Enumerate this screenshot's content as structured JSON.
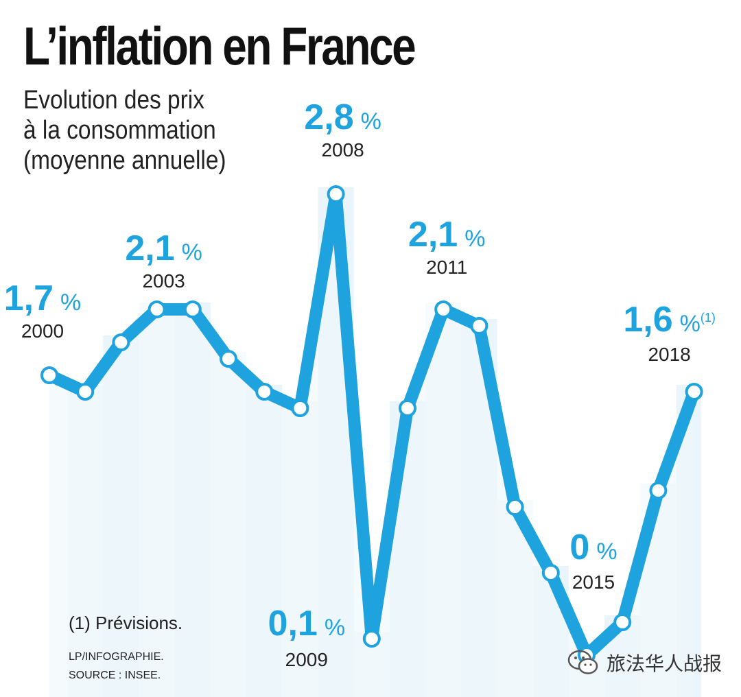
{
  "chart_data": {
    "type": "line",
    "title": "L’inflation en France",
    "subtitle_lines": [
      "Evolution des prix",
      "à la consommation",
      "(moyenne annuelle)"
    ],
    "xlabel": "",
    "ylabel": "",
    "ylim": [
      0,
      3
    ],
    "grid": false,
    "series": [
      {
        "name": "Inflation",
        "x": [
          2000,
          2001,
          2002,
          2003,
          2004,
          2005,
          2006,
          2007,
          2008,
          2009,
          2010,
          2011,
          2012,
          2013,
          2014,
          2015,
          2016,
          2017,
          2018
        ],
        "values": [
          1.7,
          1.6,
          1.9,
          2.1,
          2.1,
          1.8,
          1.6,
          1.5,
          2.8,
          0.1,
          1.5,
          2.1,
          2.0,
          0.9,
          0.5,
          0.0,
          0.2,
          1.0,
          1.6
        ],
        "color": "#1fa3df"
      }
    ],
    "annotations": [
      {
        "year": 2000,
        "value_text": "1,7",
        "unit": "%",
        "note": ""
      },
      {
        "year": 2003,
        "value_text": "2,1",
        "unit": "%",
        "note": ""
      },
      {
        "year": 2008,
        "value_text": "2,8",
        "unit": "%",
        "note": ""
      },
      {
        "year": 2009,
        "value_text": "0,1",
        "unit": "%",
        "note": ""
      },
      {
        "year": 2011,
        "value_text": "2,1",
        "unit": "%",
        "note": ""
      },
      {
        "year": 2015,
        "value_text": "0",
        "unit": "%",
        "note": ""
      },
      {
        "year": 2018,
        "value_text": "1,6",
        "unit": "%",
        "note": "(1)"
      }
    ],
    "footnote": "(1) Prévisions.",
    "credits": [
      "LP/INFOGRAPHIE.",
      "SOURCE : INSEE."
    ]
  },
  "watermark": {
    "text": "旅法华人战报",
    "icon": "wechat-icon"
  },
  "colors": {
    "accent": "#1fa3df",
    "text": "#222222",
    "stripe_light": "#eef7fc",
    "stripe_dark": "#d9edf8",
    "marker_fill": "#ffffff"
  }
}
